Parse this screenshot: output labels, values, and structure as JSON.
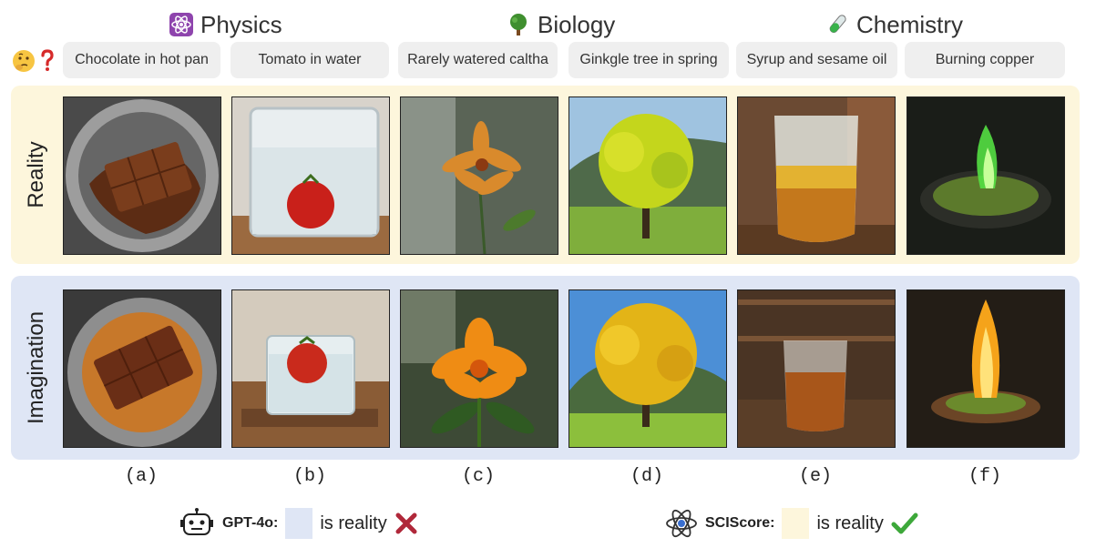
{
  "categories": [
    {
      "label": "Physics",
      "icon": "atom-icon"
    },
    {
      "label": "Biology",
      "icon": "tree-icon"
    },
    {
      "label": "Chemistry",
      "icon": "test-tube-icon"
    }
  ],
  "question_icons": [
    "thinking-face-icon",
    "question-mark-icon"
  ],
  "prompts": [
    "Chocolate in hot pan",
    "Tomato in water",
    "Rarely watered caltha",
    "Ginkgle tree in spring",
    "Syrup and sesame oil",
    "Burning copper"
  ],
  "rows": {
    "reality": {
      "label": "Reality",
      "color": "#fdf6dc"
    },
    "imagination": {
      "label": "Imagination",
      "color": "#dfe6f5"
    }
  },
  "subfig_labels": [
    "(a)",
    "(b)",
    "(c)",
    "(d)",
    "(e)",
    "(f)"
  ],
  "legend": [
    {
      "model": "GPT-4o",
      "colon": ":",
      "swatch_color": "#dfe6f5",
      "text": "is reality",
      "mark": "cross-icon",
      "mark_color": "#b0283a"
    },
    {
      "model": "SCIScore",
      "colon": ":",
      "swatch_color": "#fdf6dc",
      "text": "is reality",
      "mark": "check-icon",
      "mark_color": "#3da83a"
    }
  ]
}
